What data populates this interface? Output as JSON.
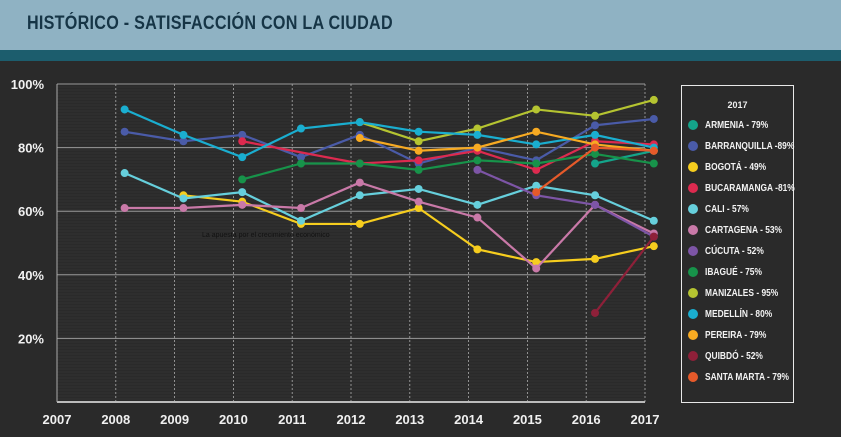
{
  "header": {
    "title": "HISTÓRICO - SATISFACCIÓN CON LA CIUDAD"
  },
  "chart_data": {
    "type": "line",
    "title": "HISTÓRICO - SATISFACCIÓN CON LA CIUDAD",
    "xlabel": "",
    "ylabel": "",
    "x": [
      2007,
      2008,
      2009,
      2010,
      2011,
      2012,
      2013,
      2014,
      2015,
      2016,
      2017
    ],
    "x_tick_labels": [
      "2007",
      "2008",
      "2009",
      "2010",
      "2011",
      "2012",
      "2013",
      "2014",
      "2015",
      "2016",
      "2017"
    ],
    "y_tick_labels": [
      "100%",
      "80%",
      "60%",
      "40%",
      "20%"
    ],
    "y_ticks": [
      100,
      80,
      60,
      40,
      20
    ],
    "ylim": [
      0,
      100
    ],
    "grid": true,
    "legend_title": "2017",
    "legend_position": "right",
    "annotation": "La apuesta por el crecimiento económico",
    "series": [
      {
        "name": "ARMENIA",
        "label": "ARMENIA - 79%",
        "color": "#14a48a",
        "values": {
          "2016": 75,
          "2017": 79
        }
      },
      {
        "name": "BARRANQUILLA",
        "label": "BARRANQUILLA -89%",
        "color": "#4a5ba8",
        "values": {
          "2008": 85,
          "2009": 82,
          "2010": 84,
          "2011": 77,
          "2012": 84,
          "2013": 75,
          "2014": 80,
          "2015": 76,
          "2016": 87,
          "2017": 89
        }
      },
      {
        "name": "BOGOTÁ",
        "label": "BOGOTÁ -  49%",
        "color": "#f6cd1e",
        "values": {
          "2009": 65,
          "2010": 63,
          "2011": 56,
          "2012": 56,
          "2013": 61,
          "2014": 48,
          "2015": 44,
          "2016": 45,
          "2017": 49
        }
      },
      {
        "name": "BUCARAMANGA",
        "label": "BUCARAMANGA -81%",
        "color": "#dd2a4f",
        "values": {
          "2010": 82,
          "2012": 75,
          "2013": 76,
          "2014": 79,
          "2015": 73,
          "2016": 82,
          "2017": 81
        }
      },
      {
        "name": "CALI",
        "label": "CALI -  57%",
        "color": "#66cfdc",
        "values": {
          "2008": 72,
          "2009": 64,
          "2010": 66,
          "2011": 57,
          "2012": 65,
          "2013": 67,
          "2014": 62,
          "2015": 68,
          "2016": 65,
          "2017": 57
        }
      },
      {
        "name": "CARTAGENA",
        "label": "CARTAGENA - 53%",
        "color": "#c979a8",
        "values": {
          "2008": 61,
          "2009": 61,
          "2010": 62,
          "2011": 61,
          "2012": 69,
          "2013": 63,
          "2014": 58,
          "2015": 42,
          "2016": 62,
          "2017": 53
        }
      },
      {
        "name": "CÚCUTA",
        "label": "CÚCUTA - 52%",
        "color": "#7d55a6",
        "values": {
          "2014": 73,
          "2015": 65,
          "2016": 62,
          "2017": 52
        }
      },
      {
        "name": "IBAGUÉ",
        "label": "IBAGUÉ -  75%",
        "color": "#17934a",
        "values": {
          "2010": 70,
          "2011": 75,
          "2012": 75,
          "2013": 73,
          "2014": 76,
          "2015": 75,
          "2016": 78,
          "2017": 75
        }
      },
      {
        "name": "MANIZALES",
        "label": "MANIZALES -  95%",
        "color": "#b5c431",
        "values": {
          "2012": 88,
          "2013": 82,
          "2014": 86,
          "2015": 92,
          "2016": 90,
          "2017": 95
        }
      },
      {
        "name": "MEDELLÍN",
        "label": "MEDELLÍN - 80%",
        "color": "#1aaed0",
        "values": {
          "2008": 92,
          "2009": 84,
          "2010": 77,
          "2011": 86,
          "2012": 88,
          "2013": 85,
          "2014": 84,
          "2015": 81,
          "2016": 84,
          "2017": 80
        }
      },
      {
        "name": "PEREIRA",
        "label": "PEREIRA - 79%",
        "color": "#f7aa22",
        "values": {
          "2012": 83,
          "2013": 79,
          "2014": 80,
          "2015": 85,
          "2016": 81,
          "2017": 79
        }
      },
      {
        "name": "QUIBDÓ",
        "label": "QUIBDÓ -  52%",
        "color": "#8e2039",
        "values": {
          "2016": 28,
          "2017": 52
        }
      },
      {
        "name": "SANTA MARTA",
        "label": "SANTA MARTA - 79%",
        "color": "#e65a2a",
        "values": {
          "2015": 66,
          "2016": 80,
          "2017": 79
        }
      }
    ]
  }
}
